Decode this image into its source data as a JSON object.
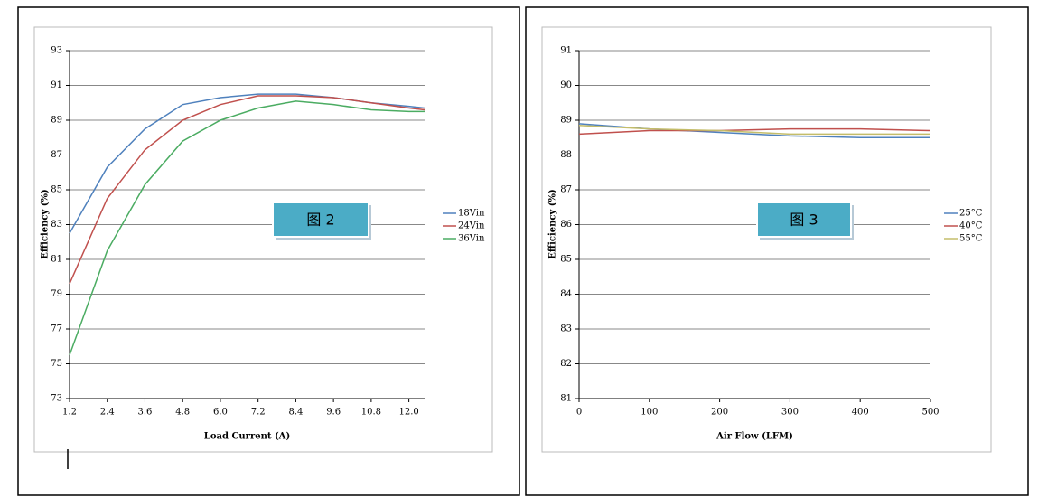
{
  "chart_data": [
    {
      "type": "line",
      "xlabel": "Load Current (A)",
      "ylabel": "Efficiency (%)",
      "annotation": "图 2",
      "x": [
        1.2,
        2.4,
        3.6,
        4.8,
        6.0,
        7.2,
        8.4,
        9.6,
        10.8,
        12.0,
        12.5
      ],
      "series": [
        {
          "name": "18Vin",
          "color": "#4f81bd",
          "values": [
            82.5,
            86.3,
            88.5,
            89.9,
            90.3,
            90.5,
            90.5,
            90.3,
            90.0,
            89.8,
            89.7
          ]
        },
        {
          "name": "24Vin",
          "color": "#c0504d",
          "values": [
            79.6,
            84.5,
            87.3,
            89.0,
            89.9,
            90.4,
            90.4,
            90.3,
            90.0,
            89.7,
            89.6
          ]
        },
        {
          "name": "36Vin",
          "color": "#4bac62",
          "values": [
            75.5,
            81.5,
            85.3,
            87.8,
            89.0,
            89.7,
            90.1,
            89.9,
            89.6,
            89.5,
            89.5
          ]
        }
      ],
      "xlim": [
        1.2,
        12.5
      ],
      "xticks": [
        1.2,
        2.4,
        3.6,
        4.8,
        {
          "value": 6,
          "label": "6.0"
        },
        7.2,
        8.4,
        9.6,
        10.8,
        {
          "value": 12,
          "label": "12.0"
        }
      ],
      "ylim": [
        73,
        93
      ],
      "yticks": [
        73,
        75,
        77,
        79,
        81,
        83,
        85,
        87,
        89,
        91,
        93
      ],
      "grid": true,
      "legend": "right"
    },
    {
      "type": "line",
      "xlabel": "Air Flow (LFM)",
      "ylabel": "Efficiency (%)",
      "annotation": "图 3",
      "x": [
        0,
        100,
        200,
        300,
        400,
        500
      ],
      "series": [
        {
          "name": "25°C",
          "color": "#4f81bd",
          "values": [
            88.9,
            88.75,
            88.65,
            88.55,
            88.5,
            88.5
          ]
        },
        {
          "name": "40°C",
          "color": "#c0504d",
          "values": [
            88.6,
            88.7,
            88.7,
            88.75,
            88.75,
            88.7
          ]
        },
        {
          "name": "55°C",
          "color": "#c4bd6a",
          "values": [
            88.85,
            88.75,
            88.7,
            88.6,
            88.6,
            88.6
          ]
        }
      ],
      "xlim": [
        0,
        500
      ],
      "xticks": [
        0,
        100,
        200,
        300,
        400,
        500
      ],
      "ylim": [
        81,
        91
      ],
      "yticks": [
        81,
        82,
        83,
        84,
        85,
        86,
        87,
        88,
        89,
        90,
        91
      ],
      "grid": true,
      "legend": "right"
    }
  ]
}
